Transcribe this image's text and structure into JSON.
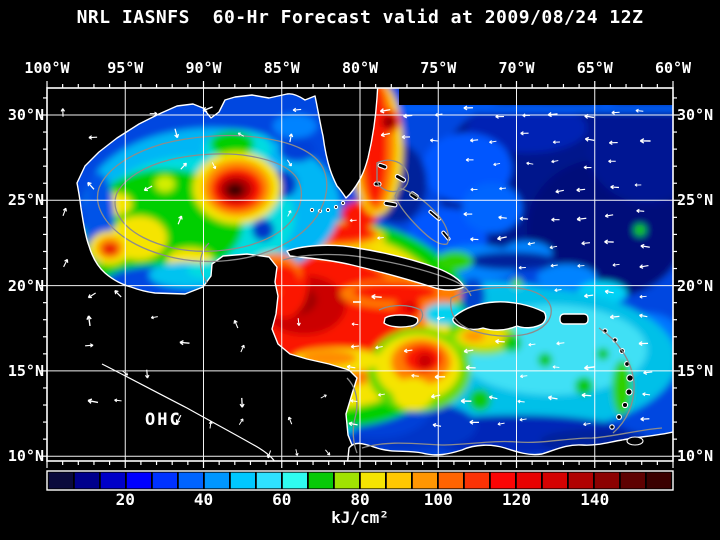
{
  "title": "NRL IASNFS  60-Hr Forecast valid at 2009/08/24 12Z",
  "map": {
    "overlay_label": "OHC",
    "region": "Gulf of Mexico and Caribbean Sea"
  },
  "axes": {
    "lon_labels": [
      "100°W",
      "95°W",
      "90°W",
      "85°W",
      "80°W",
      "75°W",
      "70°W",
      "65°W",
      "60°W"
    ],
    "lat_labels": [
      "30°N",
      "25°N",
      "20°N",
      "15°N",
      "10°N"
    ]
  },
  "colorbar": {
    "tick_values": [
      20,
      40,
      60,
      80,
      100,
      120,
      140
    ],
    "min": 0,
    "max": 160,
    "unit": "kJ/cm²",
    "colors": [
      "#0a0a3c",
      "#00008c",
      "#0000c8",
      "#0000ff",
      "#0032ff",
      "#0064ff",
      "#0096ff",
      "#00c8ff",
      "#2fe1ff",
      "#2ffcf0",
      "#07c907",
      "#a0e202",
      "#f5e402",
      "#ffc802",
      "#ff9602",
      "#ff6402",
      "#fb3205",
      "#fb0505",
      "#e80202",
      "#d40202",
      "#b00202",
      "#8c0101",
      "#5e0101",
      "#3a0000"
    ]
  },
  "colors": {
    "background": "#000000",
    "text": "#ffffff",
    "grid": "#ffffff",
    "coastline": "#ffffff",
    "bathymetry_contour": "#8c8c8c",
    "land": "#000000",
    "vectors": "#ffffff"
  }
}
